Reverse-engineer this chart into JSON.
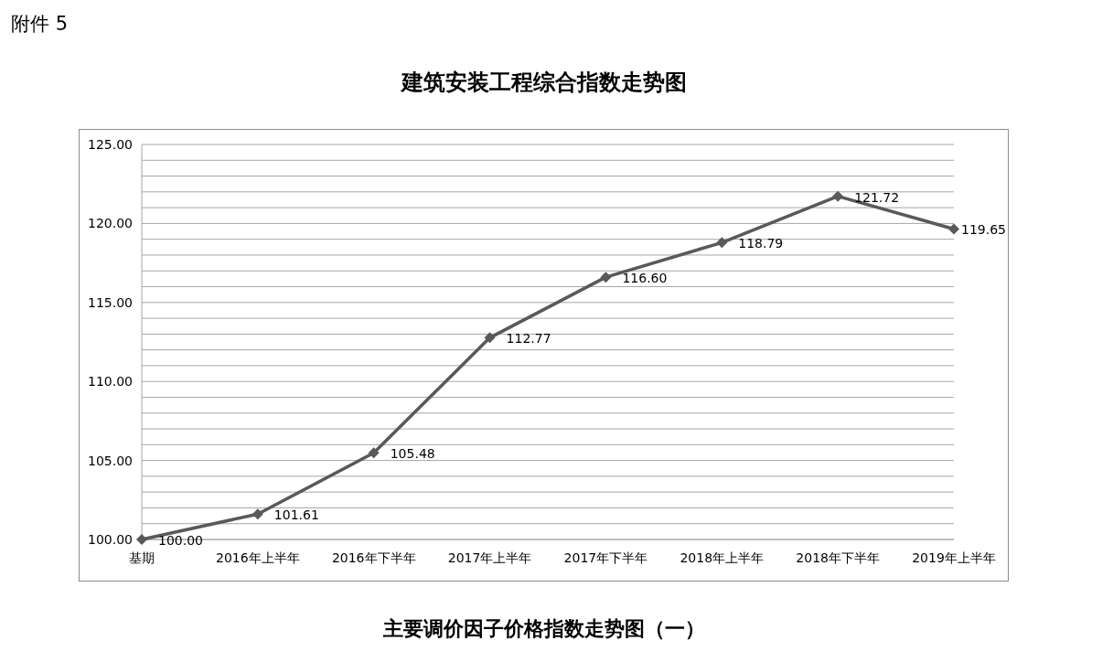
{
  "chart_data": {
    "type": "line",
    "title": "建筑安装工程综合指数走势图",
    "annotations": [
      "附件 5",
      "主要调价因子价格指数走势图（一）"
    ],
    "categories": [
      "基期",
      "2016年上半年",
      "2016年下半年",
      "2017年上半年",
      "2017年下半年",
      "2018年上半年",
      "2018年下半年",
      "2019年上半年"
    ],
    "series": [
      {
        "color": "#595959",
        "values": [
          100.0,
          101.61,
          105.48,
          112.77,
          116.6,
          118.79,
          121.72,
          119.65
        ],
        "value_labels": [
          "100.00",
          "101.61",
          "105.48",
          "112.77",
          "116.60",
          "118.79",
          "121.72",
          "119.65"
        ]
      }
    ],
    "ylim": [
      100,
      125
    ],
    "yticks": [
      {
        "value": 100,
        "label": "100.00"
      },
      {
        "value": 101,
        "label": null
      },
      {
        "value": 102,
        "label": null
      },
      {
        "value": 103,
        "label": null
      },
      {
        "value": 104,
        "label": null
      },
      {
        "value": 105,
        "label": "105.00"
      },
      {
        "value": 106,
        "label": null
      },
      {
        "value": 107,
        "label": null
      },
      {
        "value": 108,
        "label": null
      },
      {
        "value": 109,
        "label": null
      },
      {
        "value": 110,
        "label": "110.00"
      },
      {
        "value": 111,
        "label": null
      },
      {
        "value": 112,
        "label": null
      },
      {
        "value": 113,
        "label": null
      },
      {
        "value": 114,
        "label": null
      },
      {
        "value": 115,
        "label": "115.00"
      },
      {
        "value": 116,
        "label": null
      },
      {
        "value": 117,
        "label": null
      },
      {
        "value": 118,
        "label": null
      },
      {
        "value": 119,
        "label": null
      },
      {
        "value": 120,
        "label": "120.00"
      },
      {
        "value": 121,
        "label": null
      },
      {
        "value": 122,
        "label": null
      },
      {
        "value": 123,
        "label": null
      },
      {
        "value": 124,
        "label": null
      },
      {
        "value": 125,
        "label": "125.00"
      }
    ],
    "grid": "y",
    "marker": "diamond",
    "line_style": "solid"
  }
}
